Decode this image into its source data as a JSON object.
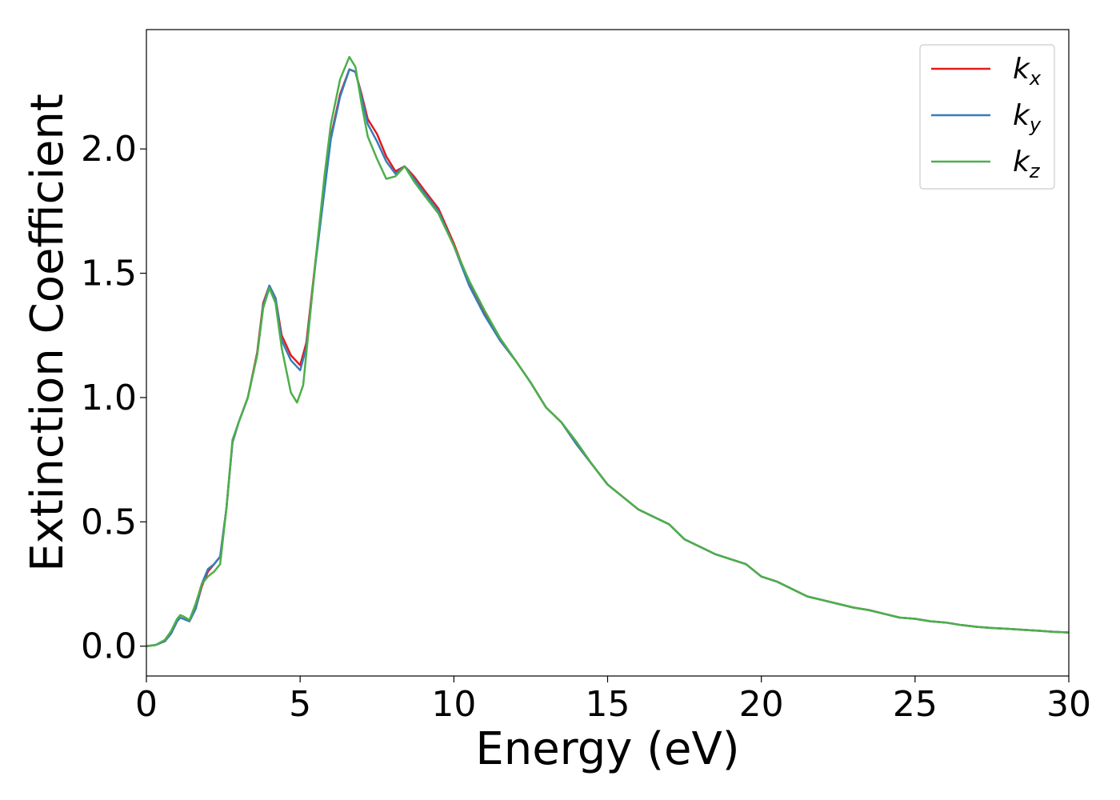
{
  "chart_data": {
    "type": "line",
    "xlabel": "Energy (eV)",
    "ylabel": "Extinction Coefficient",
    "xlim": [
      0,
      30
    ],
    "ylim": [
      -0.12,
      2.48
    ],
    "xticks": [
      0,
      5,
      10,
      15,
      20,
      25,
      30
    ],
    "yticks": [
      0.0,
      0.5,
      1.0,
      1.5,
      2.0
    ],
    "legend": "top-right",
    "grid": false,
    "series": [
      {
        "name": "k",
        "sub": "x",
        "color": "#e41a1c",
        "points": [
          [
            0,
            0
          ],
          [
            0.3,
            0.005
          ],
          [
            0.6,
            0.02
          ],
          [
            0.8,
            0.05
          ],
          [
            1.0,
            0.1
          ],
          [
            1.1,
            0.115
          ],
          [
            1.2,
            0.11
          ],
          [
            1.4,
            0.1
          ],
          [
            1.6,
            0.15
          ],
          [
            1.8,
            0.24
          ],
          [
            2.0,
            0.3
          ],
          [
            2.2,
            0.33
          ],
          [
            2.4,
            0.36
          ],
          [
            2.6,
            0.55
          ],
          [
            2.8,
            0.82
          ],
          [
            3.0,
            0.9
          ],
          [
            3.3,
            1.0
          ],
          [
            3.6,
            1.18
          ],
          [
            3.8,
            1.38
          ],
          [
            4.0,
            1.45
          ],
          [
            4.2,
            1.4
          ],
          [
            4.4,
            1.25
          ],
          [
            4.7,
            1.17
          ],
          [
            5.0,
            1.13
          ],
          [
            5.2,
            1.22
          ],
          [
            5.5,
            1.55
          ],
          [
            5.8,
            1.85
          ],
          [
            6.0,
            2.05
          ],
          [
            6.3,
            2.22
          ],
          [
            6.6,
            2.32
          ],
          [
            6.8,
            2.31
          ],
          [
            7.0,
            2.22
          ],
          [
            7.2,
            2.12
          ],
          [
            7.5,
            2.06
          ],
          [
            7.8,
            1.97
          ],
          [
            8.1,
            1.91
          ],
          [
            8.4,
            1.93
          ],
          [
            8.7,
            1.89
          ],
          [
            9.0,
            1.84
          ],
          [
            9.5,
            1.76
          ],
          [
            10.0,
            1.62
          ],
          [
            10.5,
            1.46
          ],
          [
            11.0,
            1.34
          ],
          [
            11.5,
            1.23
          ],
          [
            12.0,
            1.15
          ],
          [
            12.5,
            1.06
          ],
          [
            13.0,
            0.96
          ],
          [
            13.5,
            0.9
          ],
          [
            14.0,
            0.81
          ],
          [
            14.5,
            0.73
          ],
          [
            15.0,
            0.65
          ],
          [
            15.5,
            0.6
          ],
          [
            16.0,
            0.55
          ],
          [
            16.5,
            0.52
          ],
          [
            17.0,
            0.49
          ],
          [
            17.5,
            0.43
          ],
          [
            18.0,
            0.4
          ],
          [
            18.5,
            0.37
          ],
          [
            19.0,
            0.35
          ],
          [
            19.5,
            0.33
          ],
          [
            20.0,
            0.28
          ],
          [
            20.5,
            0.26
          ],
          [
            21.0,
            0.23
          ],
          [
            21.5,
            0.2
          ],
          [
            22.0,
            0.185
          ],
          [
            22.5,
            0.17
          ],
          [
            23.0,
            0.155
          ],
          [
            23.5,
            0.145
          ],
          [
            24.0,
            0.13
          ],
          [
            24.5,
            0.115
          ],
          [
            25.0,
            0.11
          ],
          [
            25.5,
            0.1
          ],
          [
            26.0,
            0.095
          ],
          [
            26.5,
            0.085
          ],
          [
            27.0,
            0.078
          ],
          [
            27.5,
            0.073
          ],
          [
            28.0,
            0.07
          ],
          [
            28.5,
            0.066
          ],
          [
            29.0,
            0.062
          ],
          [
            29.5,
            0.058
          ],
          [
            30.0,
            0.055
          ]
        ]
      },
      {
        "name": "k",
        "sub": "y",
        "color": "#377eb8",
        "points": [
          [
            0,
            0
          ],
          [
            0.3,
            0.005
          ],
          [
            0.6,
            0.02
          ],
          [
            0.8,
            0.05
          ],
          [
            1.0,
            0.1
          ],
          [
            1.1,
            0.115
          ],
          [
            1.2,
            0.11
          ],
          [
            1.4,
            0.1
          ],
          [
            1.6,
            0.15
          ],
          [
            1.8,
            0.25
          ],
          [
            2.0,
            0.31
          ],
          [
            2.2,
            0.33
          ],
          [
            2.4,
            0.36
          ],
          [
            2.6,
            0.55
          ],
          [
            2.8,
            0.82
          ],
          [
            3.0,
            0.9
          ],
          [
            3.3,
            1.0
          ],
          [
            3.6,
            1.17
          ],
          [
            3.8,
            1.37
          ],
          [
            4.0,
            1.45
          ],
          [
            4.2,
            1.4
          ],
          [
            4.4,
            1.23
          ],
          [
            4.7,
            1.15
          ],
          [
            5.0,
            1.11
          ],
          [
            5.2,
            1.2
          ],
          [
            5.5,
            1.54
          ],
          [
            5.8,
            1.84
          ],
          [
            6.0,
            2.04
          ],
          [
            6.3,
            2.21
          ],
          [
            6.6,
            2.32
          ],
          [
            6.8,
            2.31
          ],
          [
            7.0,
            2.21
          ],
          [
            7.2,
            2.1
          ],
          [
            7.5,
            2.03
          ],
          [
            7.8,
            1.95
          ],
          [
            8.1,
            1.9
          ],
          [
            8.4,
            1.93
          ],
          [
            8.7,
            1.88
          ],
          [
            9.0,
            1.83
          ],
          [
            9.5,
            1.75
          ],
          [
            10.0,
            1.61
          ],
          [
            10.5,
            1.45
          ],
          [
            11.0,
            1.33
          ],
          [
            11.5,
            1.23
          ],
          [
            12.0,
            1.15
          ],
          [
            12.5,
            1.06
          ],
          [
            13.0,
            0.96
          ],
          [
            13.5,
            0.9
          ],
          [
            14.0,
            0.81
          ],
          [
            14.5,
            0.73
          ],
          [
            15.0,
            0.65
          ],
          [
            15.5,
            0.6
          ],
          [
            16.0,
            0.55
          ],
          [
            16.5,
            0.52
          ],
          [
            17.0,
            0.49
          ],
          [
            17.5,
            0.43
          ],
          [
            18.0,
            0.4
          ],
          [
            18.5,
            0.37
          ],
          [
            19.0,
            0.35
          ],
          [
            19.5,
            0.33
          ],
          [
            20.0,
            0.28
          ],
          [
            20.5,
            0.26
          ],
          [
            21.0,
            0.23
          ],
          [
            21.5,
            0.2
          ],
          [
            22.0,
            0.185
          ],
          [
            22.5,
            0.17
          ],
          [
            23.0,
            0.155
          ],
          [
            23.5,
            0.145
          ],
          [
            24.0,
            0.13
          ],
          [
            24.5,
            0.115
          ],
          [
            25.0,
            0.11
          ],
          [
            25.5,
            0.1
          ],
          [
            26.0,
            0.095
          ],
          [
            26.5,
            0.085
          ],
          [
            27.0,
            0.078
          ],
          [
            27.5,
            0.073
          ],
          [
            28.0,
            0.07
          ],
          [
            28.5,
            0.066
          ],
          [
            29.0,
            0.062
          ],
          [
            29.5,
            0.058
          ],
          [
            30.0,
            0.055
          ]
        ]
      },
      {
        "name": "k",
        "sub": "z",
        "color": "#4daf4a",
        "points": [
          [
            0,
            0
          ],
          [
            0.3,
            0.005
          ],
          [
            0.6,
            0.025
          ],
          [
            0.8,
            0.06
          ],
          [
            1.0,
            0.11
          ],
          [
            1.1,
            0.125
          ],
          [
            1.2,
            0.12
          ],
          [
            1.4,
            0.105
          ],
          [
            1.6,
            0.17
          ],
          [
            1.8,
            0.25
          ],
          [
            2.0,
            0.28
          ],
          [
            2.2,
            0.3
          ],
          [
            2.4,
            0.33
          ],
          [
            2.6,
            0.55
          ],
          [
            2.8,
            0.83
          ],
          [
            3.0,
            0.9
          ],
          [
            3.3,
            1.0
          ],
          [
            3.6,
            1.17
          ],
          [
            3.8,
            1.36
          ],
          [
            4.0,
            1.44
          ],
          [
            4.2,
            1.38
          ],
          [
            4.4,
            1.2
          ],
          [
            4.7,
            1.02
          ],
          [
            4.9,
            0.98
          ],
          [
            5.1,
            1.05
          ],
          [
            5.3,
            1.3
          ],
          [
            5.5,
            1.55
          ],
          [
            5.8,
            1.9
          ],
          [
            6.0,
            2.1
          ],
          [
            6.3,
            2.28
          ],
          [
            6.6,
            2.37
          ],
          [
            6.8,
            2.33
          ],
          [
            7.0,
            2.18
          ],
          [
            7.2,
            2.05
          ],
          [
            7.5,
            1.96
          ],
          [
            7.8,
            1.88
          ],
          [
            8.1,
            1.89
          ],
          [
            8.4,
            1.93
          ],
          [
            8.7,
            1.87
          ],
          [
            9.0,
            1.82
          ],
          [
            9.5,
            1.74
          ],
          [
            10.0,
            1.61
          ],
          [
            10.5,
            1.47
          ],
          [
            11.0,
            1.35
          ],
          [
            11.5,
            1.24
          ],
          [
            12.0,
            1.15
          ],
          [
            12.5,
            1.06
          ],
          [
            13.0,
            0.96
          ],
          [
            13.5,
            0.9
          ],
          [
            14.0,
            0.82
          ],
          [
            14.5,
            0.73
          ],
          [
            15.0,
            0.65
          ],
          [
            15.5,
            0.6
          ],
          [
            16.0,
            0.55
          ],
          [
            16.5,
            0.52
          ],
          [
            17.0,
            0.49
          ],
          [
            17.5,
            0.43
          ],
          [
            18.0,
            0.4
          ],
          [
            18.5,
            0.37
          ],
          [
            19.0,
            0.35
          ],
          [
            19.5,
            0.33
          ],
          [
            20.0,
            0.28
          ],
          [
            20.5,
            0.26
          ],
          [
            21.0,
            0.23
          ],
          [
            21.5,
            0.2
          ],
          [
            22.0,
            0.185
          ],
          [
            22.5,
            0.17
          ],
          [
            23.0,
            0.155
          ],
          [
            23.5,
            0.145
          ],
          [
            24.0,
            0.13
          ],
          [
            24.5,
            0.115
          ],
          [
            25.0,
            0.11
          ],
          [
            25.5,
            0.1
          ],
          [
            26.0,
            0.095
          ],
          [
            26.5,
            0.085
          ],
          [
            27.0,
            0.078
          ],
          [
            27.5,
            0.073
          ],
          [
            28.0,
            0.07
          ],
          [
            28.5,
            0.066
          ],
          [
            29.0,
            0.062
          ],
          [
            29.5,
            0.058
          ],
          [
            30.0,
            0.055
          ]
        ]
      }
    ]
  }
}
